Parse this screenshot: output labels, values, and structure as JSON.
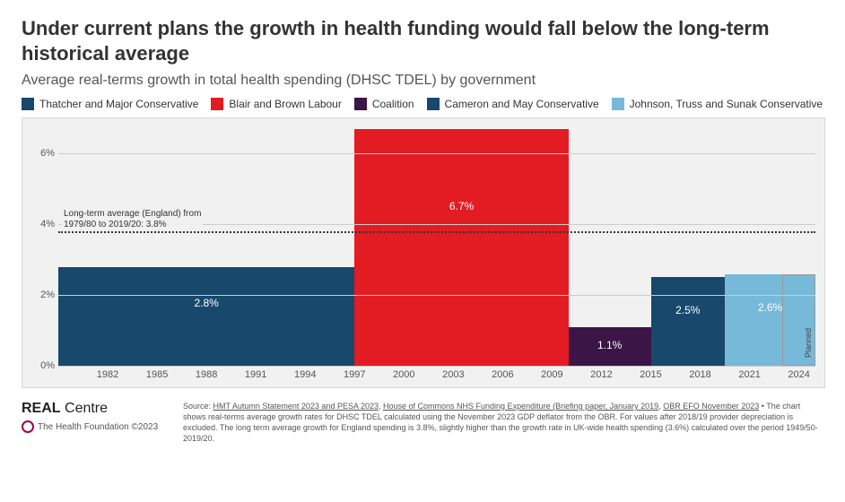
{
  "title": "Under current plans the growth in health funding would fall below the long-term historical average",
  "subtitle": "Average real-terms growth in total health spending (DHSC TDEL) by government",
  "legend": [
    {
      "label": "Thatcher and Major Conservative",
      "color": "#18486b"
    },
    {
      "label": "Blair and Brown Labour",
      "color": "#e31b23"
    },
    {
      "label": "Coalition",
      "color": "#3b1545"
    },
    {
      "label": "Cameron and May Conservative",
      "color": "#18486b"
    },
    {
      "label": "Johnson, Truss and Sunak Conservative",
      "color": "#77b9d9"
    }
  ],
  "chart": {
    "type": "bar",
    "background_color": "#f1f1f1",
    "grid_color": "#cccccc",
    "ylim": [
      0,
      7.0
    ],
    "yticks": [
      {
        "value": 0,
        "label": "0%"
      },
      {
        "value": 2,
        "label": "2%"
      },
      {
        "value": 4,
        "label": "4%"
      },
      {
        "value": 6,
        "label": "6%"
      }
    ],
    "x_range": [
      1979,
      2025
    ],
    "xticks": [
      1982,
      1985,
      1988,
      1991,
      1994,
      1997,
      2000,
      2003,
      2006,
      2009,
      2012,
      2015,
      2018,
      2021,
      2024
    ],
    "avg_line": {
      "value": 3.8,
      "label_line1": "Long-term average (England) from",
      "label_line2": "1979/80 to 2019/20: 3.8%"
    },
    "bars": [
      {
        "start": 1979,
        "end": 1997,
        "value": 2.8,
        "label": "2.8%",
        "color": "#18486b",
        "text_pos": "mid"
      },
      {
        "start": 1997,
        "end": 2010,
        "value": 6.7,
        "label": "6.7%",
        "color": "#e31b23",
        "text_pos": "mid"
      },
      {
        "start": 2010,
        "end": 2015,
        "value": 1.1,
        "label": "1.1%",
        "color": "#3b1545",
        "text_pos": "mid"
      },
      {
        "start": 2015,
        "end": 2019.5,
        "value": 2.5,
        "label": "2.5%",
        "color": "#18486b",
        "text_pos": "mid"
      },
      {
        "start": 2019.5,
        "end": 2025,
        "value": 2.6,
        "label": "2.6%",
        "color": "#77b9d9",
        "text_pos": "mid"
      }
    ],
    "planned": {
      "start": 2023,
      "end": 2025,
      "label": "Planned"
    }
  },
  "footer": {
    "logo_bold": "REAL",
    "logo_rest": " Centre",
    "logo_sub": "The Health Foundation ©2023",
    "source_prefix": "Source: ",
    "source_links": [
      "HMT Autumn Statement 2023 and PESA 2023",
      "House of Commons NHS Funding Expenditure (Briefing paper, January 2019",
      "OBR EFO November 2023"
    ],
    "source_body": " • The chart shows real-terms average growth rates for DHSC TDEL calculated using the November 2023 GDP deflator from the OBR. For values after 2018/19 provider depreciation is excluded. The long term average growth for England spending is 3.8%, slightly higher than the growth rate in UK-wide health spending (3.6%) calculated over the period 1949/50-2019/20."
  }
}
